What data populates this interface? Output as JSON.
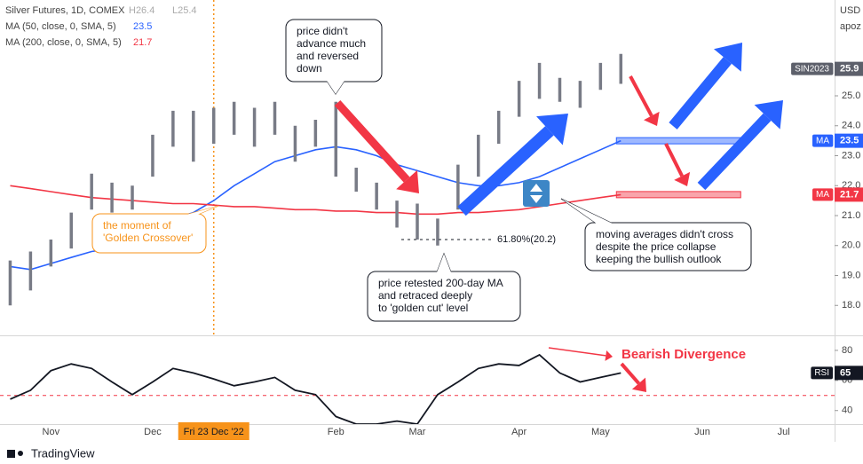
{
  "chart_data": [
    {
      "type": "ohlc",
      "title": "Silver Futures, 1D, COMEX",
      "hl_labels": [
        "H26.4",
        "L25.4"
      ],
      "currency": "USD",
      "currency_note": "apoz",
      "symbol": "SIN2023",
      "last": 25.9,
      "categories": [
        null,
        null,
        "Nov",
        null,
        null,
        null,
        null,
        "Dec",
        null,
        null,
        "Fri 23 Dec '22",
        null,
        null,
        null,
        null,
        null,
        "Feb",
        null,
        null,
        null,
        "Mar",
        null,
        null,
        null,
        null,
        "Apr",
        null,
        null,
        null,
        "May",
        null,
        null,
        null,
        null,
        "Jun",
        null,
        null,
        null,
        "Jul",
        null,
        null
      ],
      "high": [
        19.5,
        19.8,
        20.2,
        21.1,
        22.4,
        22.1,
        22.0,
        23.7,
        24.5,
        24.5,
        24.6,
        24.8,
        24.6,
        24.8,
        24.0,
        24.2,
        24.8,
        22.6,
        22.1,
        21.5,
        21.4,
        20.9,
        22.7,
        23.7,
        24.5,
        25.5,
        26.1,
        25.6,
        25.5,
        26.1,
        26.4,
        null,
        null,
        null,
        null,
        null,
        null,
        null,
        null,
        null,
        null
      ],
      "low": [
        18.0,
        18.5,
        19.3,
        19.9,
        21.2,
        21.1,
        21.2,
        22.3,
        23.3,
        22.8,
        23.4,
        23.7,
        23.3,
        23.7,
        22.8,
        23.3,
        22.3,
        21.8,
        21.2,
        20.6,
        20.2,
        20.0,
        21.2,
        22.3,
        23.4,
        24.3,
        24.9,
        24.8,
        24.6,
        25.2,
        25.4,
        null,
        null,
        null,
        null,
        null,
        null,
        null,
        null,
        null,
        null
      ],
      "color": "#787b86",
      "series": [
        {
          "name": "MA (50, close, 0, SMA, 5)",
          "color": "#2962ff",
          "last": 23.5,
          "label": "MA",
          "values": [
            19.3,
            19.2,
            19.4,
            19.6,
            19.8,
            19.9,
            20.1,
            20.6,
            20.9,
            21.1,
            21.5,
            22.0,
            22.4,
            22.8,
            23.0,
            23.2,
            23.3,
            23.2,
            23.0,
            22.7,
            22.5,
            22.3,
            22.1,
            22.0,
            22.0,
            22.1,
            22.3,
            22.6,
            22.9,
            23.2,
            23.5,
            null,
            null,
            null,
            null,
            null,
            null,
            null,
            null,
            null,
            null
          ]
        },
        {
          "name": "MA (200, close, 0, SMA, 5)",
          "color": "#f23645",
          "last": 21.7,
          "label": "MA",
          "values": [
            22.0,
            21.9,
            21.8,
            21.7,
            21.6,
            21.55,
            21.5,
            21.45,
            21.4,
            21.4,
            21.35,
            21.3,
            21.3,
            21.25,
            21.2,
            21.2,
            21.15,
            21.15,
            21.1,
            21.1,
            21.05,
            21.05,
            21.1,
            21.1,
            21.15,
            21.2,
            21.3,
            21.4,
            21.5,
            21.6,
            21.7,
            null,
            null,
            null,
            null,
            null,
            null,
            null,
            null,
            null,
            null
          ]
        }
      ],
      "fib": {
        "value": 20.2,
        "label": "61.80%(20.2)"
      },
      "ylim": [
        17,
        28.2
      ],
      "yticks": [
        {
          "value": 18,
          "label": "18.0"
        },
        {
          "value": 19,
          "label": "19.0"
        },
        {
          "value": 20,
          "label": "20.0"
        },
        {
          "value": 21,
          "label": "21.0"
        },
        {
          "value": 22,
          "label": "22.0"
        },
        {
          "value": 23,
          "label": "23.0"
        },
        {
          "value": 24,
          "label": "24.0"
        },
        {
          "value": 25,
          "label": "25.0"
        }
      ],
      "annotations": [
        {
          "lines": [
            "price didn't",
            "advance much",
            "and reversed",
            "down"
          ]
        },
        {
          "lines": [
            "the moment of",
            "'Golden Crossover'"
          ]
        },
        {
          "lines": [
            "price retested 200-day MA",
            "and retraced deeply",
            "to 'golden cut' level"
          ]
        },
        {
          "lines": [
            "moving averages didn't cross",
            "despite the price collapse",
            "keeping the bullish outlook"
          ]
        }
      ],
      "brand": "TradingView"
    },
    {
      "type": "line",
      "name": "RSI",
      "color": "#131722",
      "last": 65,
      "values": [
        47.6,
        53.5,
        66.5,
        71,
        68,
        59,
        50.6,
        59,
        68,
        65,
        61,
        56.5,
        59,
        62,
        53.5,
        50.6,
        36,
        31,
        31,
        33,
        31,
        50.6,
        59,
        68,
        71,
        70,
        77,
        65,
        59,
        62,
        65,
        null,
        null,
        null,
        null,
        null,
        null,
        null,
        null,
        null,
        null
      ],
      "level": 50,
      "annotation": "Bearish Divergence",
      "ylim": [
        31,
        88.8
      ],
      "yticks": [
        40,
        60,
        80
      ]
    }
  ]
}
